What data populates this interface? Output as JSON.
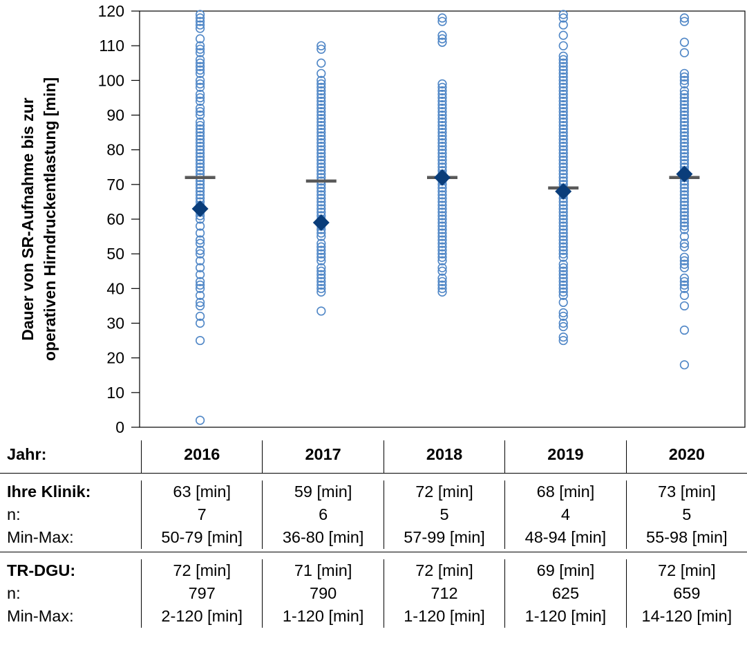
{
  "chart_data": {
    "type": "scatter",
    "title": "",
    "xlabel": "",
    "ylabel": [
      "Dauer von SR-Aufnahme bis zur",
      "operativen Hirndruckentlastung [min]"
    ],
    "ylim": [
      0,
      120
    ],
    "yticks": [
      0,
      10,
      20,
      30,
      40,
      50,
      60,
      70,
      80,
      90,
      100,
      110,
      120
    ],
    "categories": [
      "2016",
      "2017",
      "2018",
      "2019",
      "2020"
    ],
    "clinic_mean": [
      63,
      59,
      72,
      68,
      73
    ],
    "tr_dgu_mean": [
      72,
      71,
      72,
      69,
      72
    ],
    "points": [
      [
        2,
        25,
        30,
        32,
        35,
        36,
        38,
        40,
        41,
        42,
        44,
        46,
        48,
        50,
        51,
        53,
        54,
        56,
        58,
        60,
        61,
        62,
        64,
        65,
        66,
        67,
        68,
        69,
        70,
        71,
        72,
        73,
        74,
        75,
        76,
        77,
        78,
        79,
        80,
        81,
        82,
        83,
        84,
        85,
        86,
        87,
        88,
        90,
        91,
        92,
        94,
        95,
        96,
        98,
        99,
        100,
        102,
        103,
        104,
        105,
        106,
        108,
        109,
        110,
        112,
        115,
        116,
        117,
        118,
        119
      ],
      [
        33.5,
        39,
        40,
        41,
        42,
        43,
        44,
        45,
        46,
        48,
        49,
        50,
        51,
        52,
        53,
        55,
        56,
        57,
        58,
        60,
        61,
        62,
        63,
        64,
        65,
        66,
        67,
        68,
        69,
        70,
        71,
        72,
        73,
        74,
        75,
        76,
        77,
        78,
        79,
        80,
        81,
        82,
        83,
        84,
        85,
        86,
        87,
        88,
        89,
        90,
        91,
        92,
        93,
        94,
        95,
        96,
        97,
        98,
        99,
        100,
        102,
        105,
        109,
        110
      ],
      [
        39,
        40,
        41,
        42,
        43,
        45,
        46,
        48,
        49,
        50,
        51,
        52,
        53,
        54,
        55,
        56,
        57,
        58,
        59,
        60,
        61,
        62,
        63,
        64,
        65,
        66,
        67,
        68,
        69,
        70,
        71,
        72,
        73,
        74,
        75,
        76,
        77,
        78,
        79,
        80,
        81,
        82,
        83,
        84,
        85,
        86,
        87,
        88,
        89,
        90,
        91,
        92,
        93,
        94,
        95,
        96,
        97,
        98,
        99,
        111,
        112,
        113,
        117,
        118
      ],
      [
        25,
        26,
        29,
        30,
        32,
        33,
        36,
        38,
        39,
        40,
        41,
        42,
        43,
        44,
        45,
        46,
        47,
        49,
        50,
        51,
        52,
        53,
        54,
        55,
        56,
        57,
        58,
        59,
        60,
        61,
        62,
        63,
        64,
        65,
        66,
        67,
        68,
        69,
        70,
        71,
        72,
        73,
        74,
        75,
        76,
        77,
        78,
        79,
        80,
        81,
        82,
        83,
        84,
        85,
        86,
        87,
        88,
        89,
        90,
        91,
        92,
        93,
        94,
        95,
        96,
        97,
        98,
        99,
        100,
        101,
        102,
        103,
        104,
        105,
        106,
        107,
        110,
        113,
        116,
        118,
        119
      ],
      [
        18,
        28,
        35,
        38,
        40,
        41,
        42,
        43,
        46,
        47,
        48,
        49,
        52,
        53,
        55,
        57,
        58,
        59,
        60,
        61,
        62,
        63,
        64,
        65,
        66,
        67,
        68,
        69,
        70,
        71,
        72,
        73,
        74,
        75,
        76,
        77,
        78,
        79,
        80,
        81,
        82,
        83,
        84,
        85,
        86,
        87,
        88,
        89,
        90,
        91,
        92,
        93,
        94,
        95,
        96,
        97,
        99,
        100,
        101,
        102,
        108,
        111,
        117,
        118
      ]
    ],
    "colors": {
      "points": "#4f86c6",
      "clinic_marker": "#0a3d7a",
      "tr_dgu_bar": "#595959"
    }
  },
  "table": {
    "header_label": "Jahr:",
    "years": [
      "2016",
      "2017",
      "2018",
      "2019",
      "2020"
    ],
    "groups": [
      {
        "title": "Ihre Klinik:",
        "n_label": "n:",
        "minmax_label": "Min-Max:",
        "values": [
          "63 [min]",
          "59 [min]",
          "72 [min]",
          "68 [min]",
          "73 [min]"
        ],
        "n": [
          "7",
          "6",
          "5",
          "4",
          "5"
        ],
        "minmax": [
          "50-79 [min]",
          "36-80 [min]",
          "57-99 [min]",
          "48-94 [min]",
          "55-98 [min]"
        ]
      },
      {
        "title": "TR-DGU:",
        "n_label": "n:",
        "minmax_label": "Min-Max:",
        "values": [
          "72 [min]",
          "71 [min]",
          "72 [min]",
          "69 [min]",
          "72 [min]"
        ],
        "n": [
          "797",
          "790",
          "712",
          "625",
          "659"
        ],
        "minmax": [
          "2-120 [min]",
          "1-120 [min]",
          "1-120 [min]",
          "1-120 [min]",
          "14-120 [min]"
        ]
      }
    ]
  }
}
